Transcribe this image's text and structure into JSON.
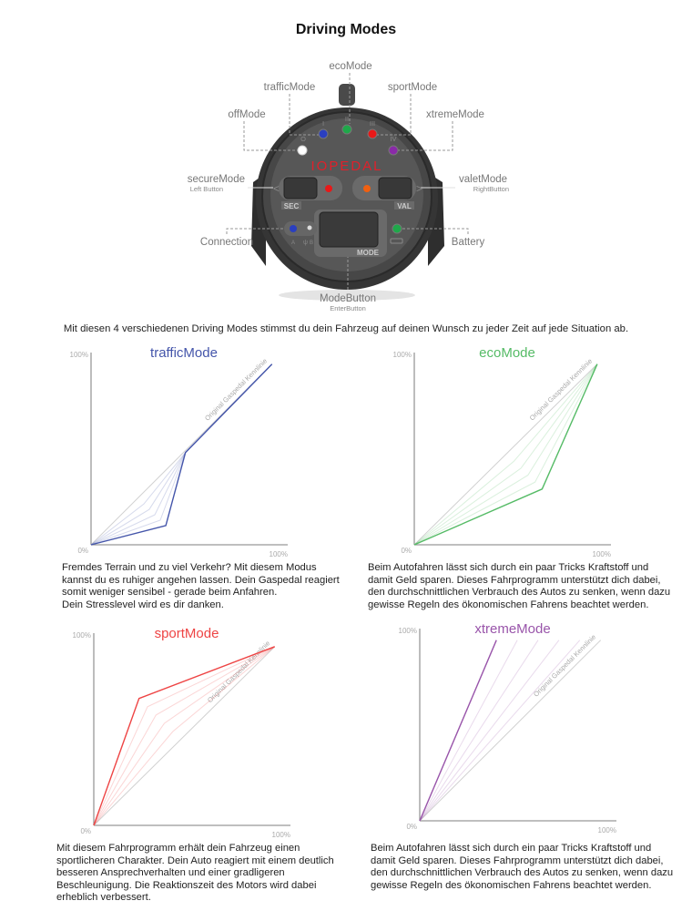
{
  "title": "Driving Modes",
  "device": {
    "logo": "IOPEDAL",
    "labels": {
      "eco": "ecoMode",
      "traffic": "trafficMode",
      "sport": "sportMode",
      "off": "offMode",
      "xtreme": "xtremeMode",
      "secure": "secureMode",
      "secure_sub": "Left Button",
      "valet": "valetMode",
      "valet_sub": "RightButton",
      "connection": "Connection",
      "battery": "Battery",
      "mode": "ModeButton",
      "mode_sub": "EnterButton"
    },
    "led_marks": {
      "off": "O",
      "traffic": "I",
      "eco": "II",
      "sport": "III",
      "xtreme": "IV"
    },
    "button_labels": {
      "sec": "SEC",
      "val": "VAL",
      "mode": "MODE",
      "conn_a": "A",
      "conn_b": "B"
    },
    "led_colors": {
      "off": "#ffffff",
      "traffic": "#2a3fc0",
      "eco": "#1fa84a",
      "sport": "#e81818",
      "xtreme": "#8a2aa8",
      "secure": "#e81818",
      "valet": "#f06010",
      "connection": "#2a3fc0",
      "battery": "#1fa84a"
    },
    "logo_color": "#e0202a"
  },
  "intro": "Mit diesen 4 verschiedenen Driving Modes stimmst du dein Fahrzeug auf deinen Wunsch zu jeder Zeit auf jede Situation ab.",
  "chart_data": [
    {
      "type": "line",
      "title": "trafficMode",
      "color": "#4455aa",
      "ylabel_top": "100%",
      "origin_label": "0%",
      "xlabel_right": "100%",
      "xlim": [
        0,
        100
      ],
      "ylim": [
        0,
        100
      ],
      "reference": {
        "label": "Original Gaspedal Kennlinie",
        "points": [
          [
            0,
            0
          ],
          [
            92,
            94
          ]
        ]
      },
      "main": [
        [
          0,
          0
        ],
        [
          38,
          10
        ],
        [
          48,
          48
        ],
        [
          92,
          94
        ]
      ],
      "intermediate_lines": 4
    },
    {
      "type": "line",
      "title": "ecoMode",
      "color": "#55bb66",
      "ylabel_top": "100%",
      "origin_label": "0%",
      "xlabel_right": "100%",
      "xlim": [
        0,
        100
      ],
      "ylim": [
        0,
        100
      ],
      "reference": {
        "label": "Original Gaspedal Kennlinie",
        "points": [
          [
            0,
            0
          ],
          [
            93,
            94
          ]
        ]
      },
      "main": [
        [
          0,
          0
        ],
        [
          65,
          29
        ],
        [
          93,
          94
        ]
      ],
      "intermediate_lines": 4
    },
    {
      "type": "line",
      "title": "sportMode",
      "color": "#ee4444",
      "ylabel_top": "100%",
      "origin_label": "0%",
      "xlabel_right": "100%",
      "xlim": [
        0,
        100
      ],
      "ylim": [
        0,
        100
      ],
      "reference": {
        "label": "Original Gaspedal Kennlinie",
        "points": [
          [
            0,
            0
          ],
          [
            92,
            93
          ]
        ]
      },
      "main": [
        [
          0,
          0
        ],
        [
          23,
          66
        ],
        [
          92,
          93
        ]
      ],
      "intermediate_lines": 4
    },
    {
      "type": "line",
      "title": "xtremeMode",
      "color": "#9955aa",
      "ylabel_top": "100%",
      "origin_label": "0%",
      "xlabel_right": "100%",
      "xlim": [
        0,
        100
      ],
      "ylim": [
        0,
        100
      ],
      "reference": {
        "label": "Original Gaspedal Kennlinie",
        "points": [
          [
            0,
            0
          ],
          [
            92,
            94
          ]
        ]
      },
      "main": [
        [
          0,
          0
        ],
        [
          39,
          94
        ]
      ],
      "intermediate_lines": 4
    }
  ],
  "descriptions": [
    [
      "Fremdes Terrain und zu viel Verkehr? Mit diesem Modus",
      "kannst du es ruhiger angehen lassen. Dein Gaspedal reagiert",
      "somit weniger sensibel - gerade beim Anfahren.",
      "Dein Stresslevel wird es dir danken."
    ],
    [
      "Beim Autofahren lässt sich durch ein paar Tricks Kraftstoff und",
      "damit Geld sparen. Dieses Fahrprogramm unterstützt dich dabei,",
      "den durchschnittlichen Verbrauch des Autos zu senken,  wenn dazu",
      "gewisse Regeln des ökonomischen Fahrens beachtet werden."
    ],
    [
      "Mit diesem Fahrprogramm erhält dein Fahrzeug einen",
      "sportlicheren Charakter. Dein Auto reagiert mit einem deutlich",
      "besseren Ansprechverhalten und einer gradligeren",
      "Beschleunigung. Die Reaktionszeit des Motors wird dabei",
      "erheblich verbessert."
    ],
    [
      "Beim Autofahren lässt sich durch ein paar Tricks Kraftstoff und",
      "damit Geld sparen. Dieses Fahrprogramm unterstützt dich dabei,",
      "den durchschnittlichen Verbrauch des Autos zu senken,  wenn dazu",
      "gewisse Regeln des ökonomischen Fahrens beachtet werden."
    ]
  ]
}
